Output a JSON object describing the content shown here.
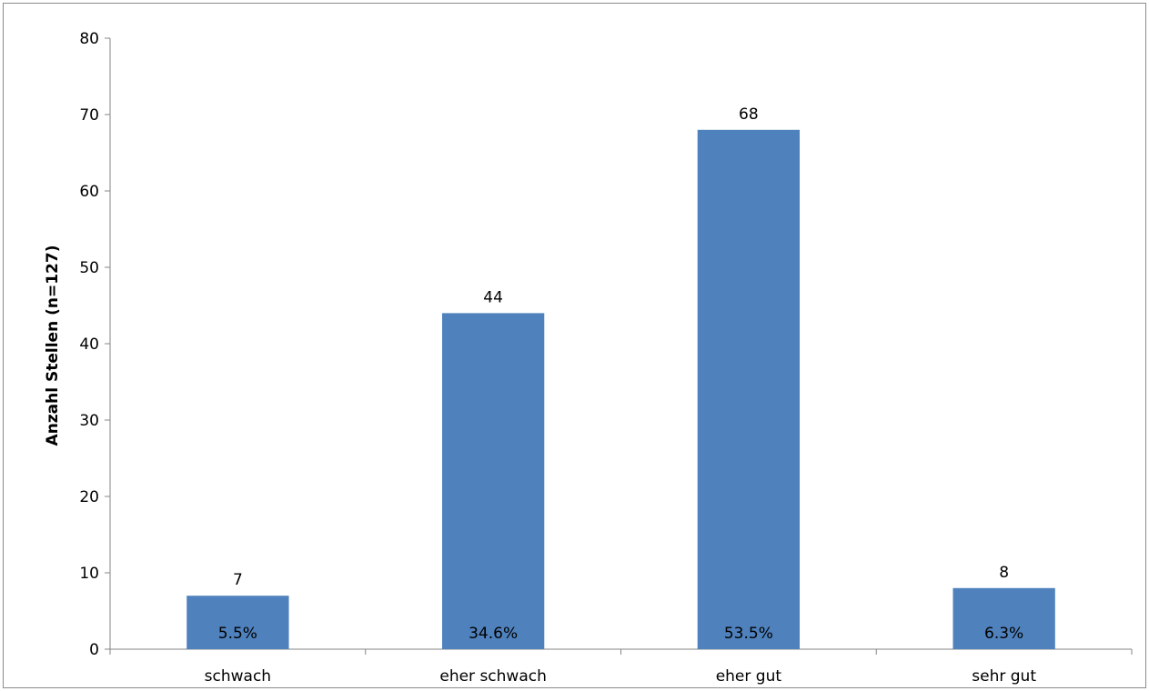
{
  "chart_data": {
    "type": "bar",
    "categories": [
      "schwach",
      "eher schwach",
      "eher gut",
      "sehr gut"
    ],
    "values": [
      7,
      44,
      68,
      8
    ],
    "percent_labels": [
      "5.5%",
      "34.6%",
      "53.5%",
      "6.3%"
    ],
    "value_labels": [
      "7",
      "44",
      "68",
      "8"
    ],
    "title": "",
    "xlabel": "",
    "ylabel": "Anzahl Stellen (n=127)",
    "ylim": [
      0,
      80
    ],
    "yticks": [
      "0",
      "10",
      "20",
      "30",
      "40",
      "50",
      "60",
      "70",
      "80"
    ],
    "bar_color": "#4f81bd",
    "grid": false,
    "legend": "none"
  }
}
